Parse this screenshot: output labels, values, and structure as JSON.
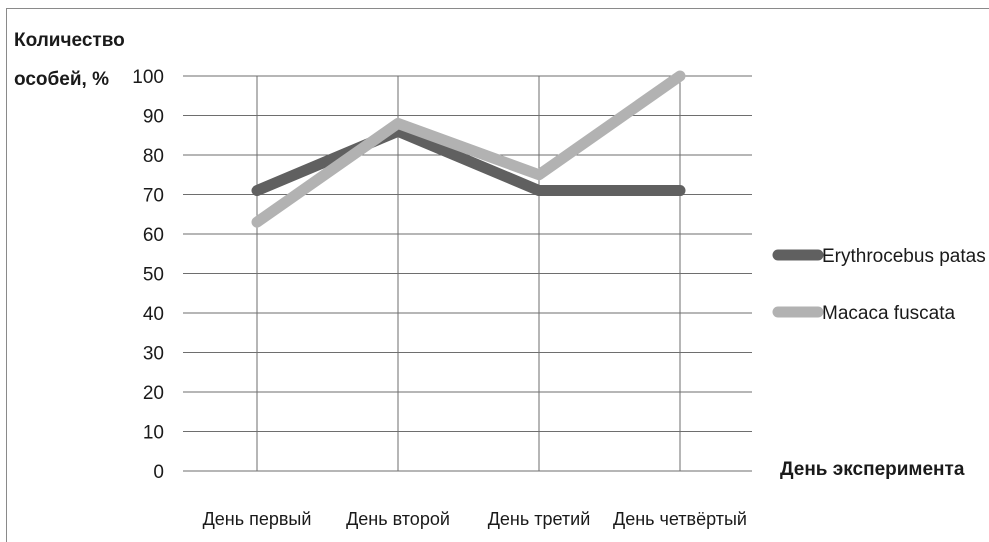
{
  "chart_data": {
    "type": "line",
    "ylabel_line1": "Количество",
    "ylabel_line2": "особей, %",
    "xlabel": "День эксперимента",
    "ylim": [
      0,
      100
    ],
    "yticks": [
      "0",
      "10",
      "20",
      "30",
      "40",
      "50",
      "60",
      "70",
      "80",
      "90",
      "100"
    ],
    "categories": [
      "День первый",
      "День второй",
      "День третий",
      "День четвёртый"
    ],
    "series": [
      {
        "name": "Erythrocebus patas",
        "values": [
          71,
          86,
          71,
          71
        ],
        "color": "#606060"
      },
      {
        "name": "Macaca fuscata",
        "values": [
          63,
          88,
          75,
          100
        ],
        "color": "#b2b2b2"
      }
    ],
    "grid": true,
    "legend_position": "right"
  }
}
